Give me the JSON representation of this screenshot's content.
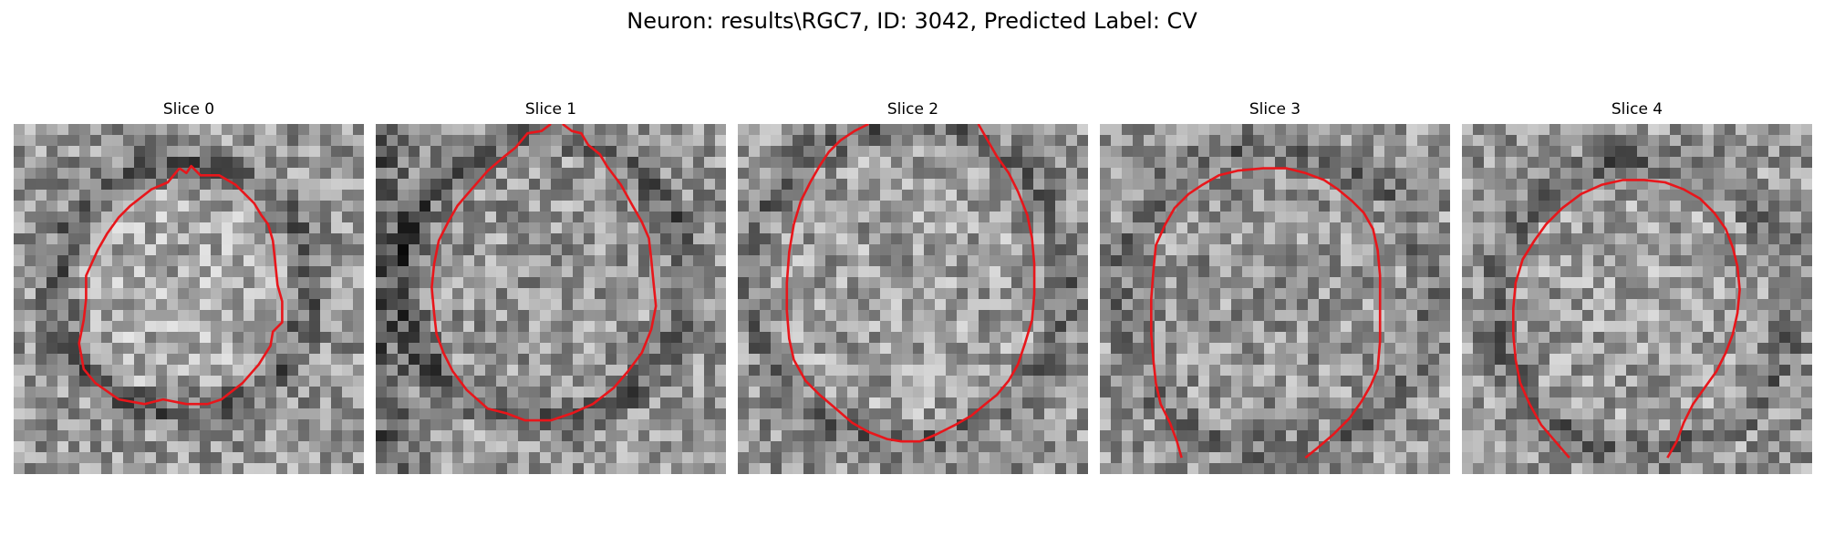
{
  "figure": {
    "title": "Neuron: results\\RGC7, ID: 3042, Predicted Label: CV"
  },
  "panels": [
    {
      "title": "Slice 0"
    },
    {
      "title": "Slice 1"
    },
    {
      "title": "Slice 2"
    },
    {
      "title": "Slice 3"
    },
    {
      "title": "Slice 4"
    }
  ],
  "colors": {
    "contour": "#e8161b",
    "background": "#ffffff"
  }
}
